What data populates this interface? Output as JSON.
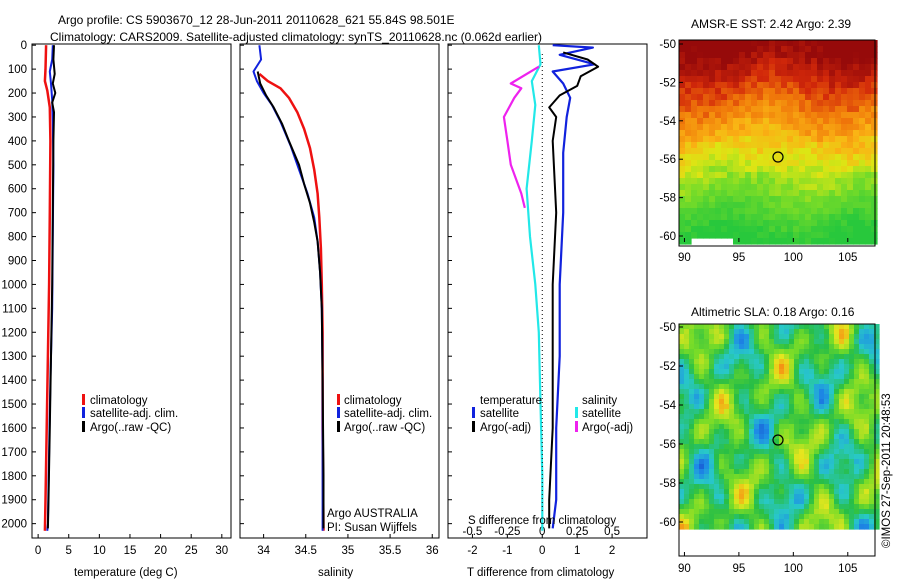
{
  "header": {
    "line1": "Argo profile: CS 5903670_12 28-Jun-2011 20110628_621 55.84S 98.501E",
    "line2": "Climatology: CARS2009. Satellite-adjusted climatology: synTS_20110628.nc (0.062d earlier)"
  },
  "watermark": "©IMOS 27-Sep-2011 20:48:53",
  "depth_ticks": [
    "0",
    "100",
    "200",
    "300",
    "400",
    "500",
    "600",
    "700",
    "800",
    "900",
    "1000",
    "1100",
    "1200",
    "1300",
    "1400",
    "1500",
    "1600",
    "1700",
    "1800",
    "1900",
    "2000"
  ],
  "colors": {
    "red": "#ee1111",
    "blue": "#1122dd",
    "black": "#000000",
    "cyan": "#22e8e8",
    "magenta": "#ee22ee"
  },
  "chart_data": [
    {
      "type": "line",
      "name": "temperature",
      "xlabel": "temperature (deg C)",
      "xticks": [
        "0",
        "5",
        "10",
        "15",
        "20",
        "25",
        "30"
      ],
      "xlim": [
        -1,
        31.5
      ],
      "ylim": [
        2060,
        -5
      ],
      "legend": [
        "climatology",
        "satellite-adj. clim.",
        "Argo(..raw -QC)"
      ],
      "series": [
        {
          "color": "red",
          "width": 2.5,
          "points": [
            [
              1.3,
              0
            ],
            [
              1.2,
              100
            ],
            [
              1.1,
              150
            ],
            [
              1.5,
              190
            ],
            [
              1.9,
              260
            ],
            [
              2.0,
              400
            ],
            [
              1.9,
              700
            ],
            [
              1.8,
              1000
            ],
            [
              1.6,
              1300
            ],
            [
              1.4,
              1600
            ],
            [
              1.2,
              1900
            ],
            [
              1.1,
              2030
            ]
          ]
        },
        {
          "color": "blue",
          "width": 2,
          "points": [
            [
              2.4,
              0
            ],
            [
              2.3,
              60
            ],
            [
              1.9,
              110
            ],
            [
              2.1,
              160
            ],
            [
              2.3,
              230
            ],
            [
              2.4,
              320
            ],
            [
              2.5,
              500
            ],
            [
              2.4,
              800
            ],
            [
              2.3,
              1100
            ],
            [
              2.0,
              1400
            ],
            [
              1.8,
              1700
            ],
            [
              1.6,
              2000
            ],
            [
              1.5,
              2030
            ]
          ]
        },
        {
          "color": "black",
          "width": 2,
          "points": [
            [
              2.6,
              0
            ],
            [
              2.5,
              60
            ],
            [
              2.7,
              120
            ],
            [
              2.4,
              160
            ],
            [
              2.8,
              200
            ],
            [
              2.3,
              240
            ],
            [
              2.6,
              280
            ],
            [
              2.5,
              400
            ],
            [
              2.4,
              700
            ],
            [
              2.3,
              1000
            ],
            [
              2.1,
              1300
            ],
            [
              1.9,
              1600
            ],
            [
              1.7,
              1900
            ],
            [
              1.6,
              2020
            ]
          ]
        }
      ]
    },
    {
      "type": "line",
      "name": "salinity",
      "xlabel": "salinity",
      "xticks": [
        "34",
        "34.5",
        "35",
        "35.5",
        "36"
      ],
      "xlim": [
        33.72,
        36.08
      ],
      "ylim": [
        2060,
        -5
      ],
      "legend": [
        "climatology",
        "satellite-adj. clim.",
        "Argo(..raw -QC)"
      ],
      "credits": [
        "Argo AUSTRALIA",
        "PI: Susan Wijffels"
      ],
      "series": [
        {
          "color": "red",
          "width": 2.5,
          "points": [
            [
              33.95,
              120
            ],
            [
              34.05,
              150
            ],
            [
              34.2,
              180
            ],
            [
              34.3,
              220
            ],
            [
              34.4,
              280
            ],
            [
              34.48,
              350
            ],
            [
              34.55,
              430
            ],
            [
              34.6,
              520
            ],
            [
              34.64,
              620
            ],
            [
              34.66,
              720
            ],
            [
              34.68,
              850
            ],
            [
              34.69,
              1000
            ],
            [
              34.7,
              1200
            ],
            [
              34.7,
              1600
            ],
            [
              34.71,
              2030
            ]
          ]
        },
        {
          "color": "blue",
          "width": 2,
          "points": [
            [
              33.95,
              0
            ],
            [
              33.97,
              60
            ],
            [
              33.88,
              110
            ],
            [
              33.92,
              150
            ],
            [
              34.0,
              200
            ],
            [
              34.1,
              250
            ],
            [
              34.2,
              320
            ],
            [
              34.32,
              420
            ],
            [
              34.42,
              520
            ],
            [
              34.52,
              620
            ],
            [
              34.6,
              720
            ],
            [
              34.64,
              820
            ],
            [
              34.67,
              950
            ],
            [
              34.69,
              1100
            ],
            [
              34.7,
              1400
            ],
            [
              34.7,
              1800
            ],
            [
              34.7,
              2030
            ]
          ]
        },
        {
          "color": "black",
          "width": 2,
          "points": [
            [
              33.93,
              110
            ],
            [
              33.96,
              160
            ],
            [
              34.03,
              210
            ],
            [
              34.12,
              260
            ],
            [
              34.22,
              330
            ],
            [
              34.3,
              400
            ],
            [
              34.42,
              500
            ],
            [
              34.48,
              580
            ],
            [
              34.55,
              660
            ],
            [
              34.6,
              740
            ],
            [
              34.64,
              820
            ],
            [
              34.67,
              950
            ],
            [
              34.69,
              1100
            ],
            [
              34.7,
              1400
            ],
            [
              34.71,
              1800
            ],
            [
              34.71,
              2020
            ]
          ]
        }
      ]
    },
    {
      "type": "line",
      "name": "difference",
      "xlabel": "T difference from climatology",
      "xlabel_top": "S difference from climatology",
      "xticks": [
        "-2",
        "-1",
        "0",
        "1",
        "2"
      ],
      "xticks_top": [
        "-0.5",
        "-0.25",
        "0",
        "0.25",
        "0.5"
      ],
      "xlim": [
        -2.7,
        3.0
      ],
      "ylim": [
        2060,
        -5
      ],
      "legend_t": {
        "title": "temperature",
        "items": [
          "satellite",
          "Argo(-adj)"
        ]
      },
      "legend_s": {
        "title": "salinity",
        "items": [
          "satellite",
          "Argo(-adj)"
        ]
      },
      "series": [
        {
          "color": "blue",
          "width": 2.2,
          "points": [
            [
              0.3,
              0
            ],
            [
              1.45,
              10
            ],
            [
              0.5,
              40
            ],
            [
              1.5,
              80
            ],
            [
              0.3,
              110
            ],
            [
              0.6,
              160
            ],
            [
              0.8,
              220
            ],
            [
              0.7,
              300
            ],
            [
              0.6,
              450
            ],
            [
              0.6,
              700
            ],
            [
              0.5,
              1000
            ],
            [
              0.5,
              1300
            ],
            [
              0.4,
              1600
            ],
            [
              0.4,
              1900
            ],
            [
              0.3,
              2020
            ]
          ]
        },
        {
          "color": "black",
          "width": 2,
          "points": [
            [
              0.6,
              30
            ],
            [
              1.3,
              60
            ],
            [
              1.6,
              90
            ],
            [
              1.1,
              130
            ],
            [
              1.0,
              170
            ],
            [
              0.5,
              210
            ],
            [
              0.2,
              260
            ],
            [
              0.4,
              300
            ],
            [
              0.3,
              400
            ],
            [
              0.4,
              700
            ],
            [
              0.3,
              1000
            ],
            [
              0.3,
              1300
            ],
            [
              0.3,
              1600
            ],
            [
              0.2,
              1900
            ],
            [
              0.2,
              2020
            ]
          ]
        },
        {
          "color": "cyan",
          "width": 2.2,
          "points": [
            [
              -0.1,
              0
            ],
            [
              -0.05,
              80
            ],
            [
              -0.3,
              150
            ],
            [
              -0.2,
              250
            ],
            [
              -0.3,
              400
            ],
            [
              -0.45,
              600
            ],
            [
              -0.35,
              800
            ],
            [
              -0.2,
              1000
            ],
            [
              -0.1,
              1200
            ],
            [
              -0.05,
              1500
            ],
            [
              0.0,
              1800
            ],
            [
              0.0,
              2030
            ]
          ]
        },
        {
          "color": "magenta",
          "width": 2.2,
          "points": [
            [
              -0.1,
              90
            ],
            [
              -0.9,
              160
            ],
            [
              -0.6,
              180
            ],
            [
              -0.8,
              220
            ],
            [
              -1.1,
              300
            ],
            [
              -1.0,
              400
            ],
            [
              -0.9,
              500
            ],
            [
              -0.6,
              620
            ],
            [
              -0.5,
              680
            ]
          ]
        }
      ]
    }
  ],
  "maps": {
    "sst": {
      "title": "AMSR-E SST: 2.42 Argo: 2.39",
      "lat_ticks": [
        "-50",
        "-52",
        "-54",
        "-56",
        "-58",
        "-60"
      ],
      "lon_ticks": [
        "90",
        "95",
        "100",
        "105"
      ]
    },
    "sla": {
      "title": "Altimetric SLA: 0.18 Argo: 0.16",
      "lat_ticks": [
        "-50",
        "-52",
        "-54",
        "-56",
        "-58",
        "-60"
      ],
      "lon_ticks": [
        "90",
        "95",
        "100",
        "105"
      ]
    }
  }
}
